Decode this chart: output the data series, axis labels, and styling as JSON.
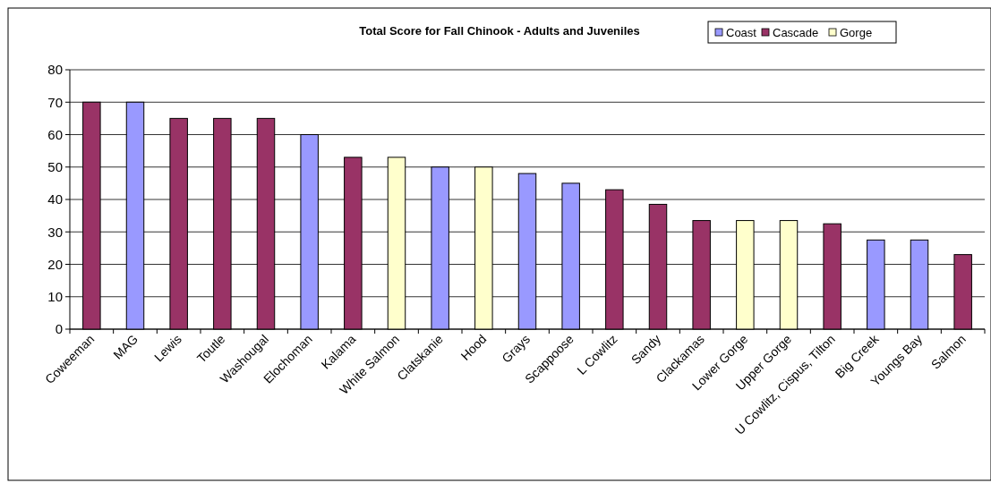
{
  "chart_data": {
    "type": "bar",
    "title": "Total Score for Fall Chinook - Adults and Juveniles",
    "stacked": true,
    "categories": [
      "Coweeman",
      "MAG",
      "Lewis",
      "Toutle",
      "Washougal",
      "Elochoman",
      "Kalama",
      "White Salmon",
      "Clatskanie",
      "Hood",
      "Grays",
      "Scappoose",
      "L Cowlitz",
      "Sandy",
      "Clackamas",
      "Lower Gorge",
      "Upper Gorge",
      "U Cowlitz, Cispus, Tilton",
      "Big Creek",
      "Youngs Bay",
      "Salmon"
    ],
    "series": [
      {
        "name": "Coast",
        "color": "#9999ff",
        "values": [
          null,
          70,
          null,
          null,
          null,
          60,
          null,
          null,
          50,
          null,
          48,
          45,
          null,
          null,
          null,
          null,
          null,
          null,
          27.5,
          27.5,
          null
        ]
      },
      {
        "name": "Cascade",
        "color": "#993366",
        "values": [
          70,
          null,
          65,
          65,
          65,
          null,
          53,
          null,
          null,
          null,
          null,
          null,
          43,
          38.5,
          33.5,
          null,
          null,
          32.5,
          null,
          null,
          23
        ]
      },
      {
        "name": "Gorge",
        "color": "#ffffcc",
        "values": [
          null,
          null,
          null,
          null,
          null,
          null,
          null,
          53,
          null,
          50,
          null,
          null,
          null,
          null,
          null,
          33.5,
          33.5,
          null,
          null,
          null,
          null
        ]
      }
    ],
    "ylim": [
      0,
      80
    ],
    "yticks": [
      0,
      10,
      20,
      30,
      40,
      50,
      60,
      70,
      80
    ],
    "grid": "y",
    "legend": "top right"
  }
}
